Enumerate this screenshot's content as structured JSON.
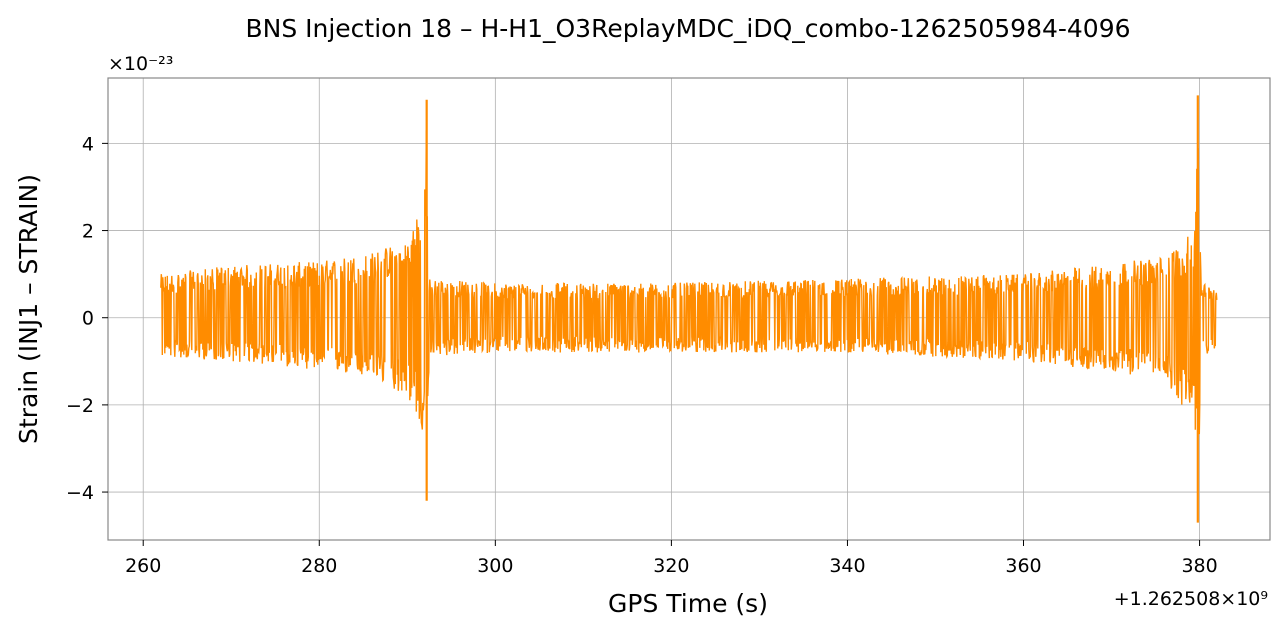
{
  "chart_data": {
    "type": "line",
    "title": "BNS Injection 18 – H-H1_O3ReplayMDC_iDQ_combo-1262505984-4096",
    "xlabel": "GPS Time (s)",
    "ylabel": "Strain (INJ1 – STRAIN)",
    "x_offset_label": "+1.262508×10⁹",
    "y_scale_label": "×10⁻²³",
    "xlim": [
      256,
      388
    ],
    "ylim": [
      -5.1,
      5.5
    ],
    "x_ticks": [
      260,
      280,
      300,
      320,
      340,
      360,
      380
    ],
    "y_ticks": [
      -4,
      -2,
      0,
      2,
      4
    ],
    "x_tick_labels": [
      "260",
      "280",
      "300",
      "320",
      "340",
      "360",
      "380"
    ],
    "y_tick_labels": [
      "−4",
      "−2",
      "0",
      "2",
      "4"
    ],
    "grid": true,
    "legend": "none",
    "color": "#ff8c00",
    "series": [
      {
        "x_start": 262,
        "x_end": 382,
        "envelope": [
          {
            "x": 262,
            "lo": -0.9,
            "hi": 1.0
          },
          {
            "x": 270,
            "lo": -1.0,
            "hi": 1.2
          },
          {
            "x": 280,
            "lo": -1.2,
            "hi": 1.3
          },
          {
            "x": 286,
            "lo": -1.4,
            "hi": 1.5
          },
          {
            "x": 290,
            "lo": -1.8,
            "hi": 1.8
          },
          {
            "x": 292.0,
            "lo": -2.8,
            "hi": 3.0
          },
          {
            "x": 292.2,
            "lo": -4.2,
            "hi": 5.0
          },
          {
            "x": 292.5,
            "lo": -0.9,
            "hi": 0.9
          },
          {
            "x": 300,
            "lo": -0.8,
            "hi": 0.8
          },
          {
            "x": 320,
            "lo": -0.8,
            "hi": 0.8
          },
          {
            "x": 340,
            "lo": -0.8,
            "hi": 0.9
          },
          {
            "x": 360,
            "lo": -1.0,
            "hi": 1.0
          },
          {
            "x": 376,
            "lo": -1.4,
            "hi": 1.4
          },
          {
            "x": 379.5,
            "lo": -2.5,
            "hi": 2.0
          },
          {
            "x": 379.8,
            "lo": -4.7,
            "hi": 5.1
          },
          {
            "x": 380.2,
            "lo": -0.9,
            "hi": 0.8
          },
          {
            "x": 382,
            "lo": -0.8,
            "hi": 0.7
          }
        ],
        "spikes": [
          {
            "x": 292.2,
            "min": -4.2,
            "max": 5.0
          },
          {
            "x": 379.8,
            "min": -4.7,
            "max": 5.1
          }
        ]
      }
    ]
  }
}
